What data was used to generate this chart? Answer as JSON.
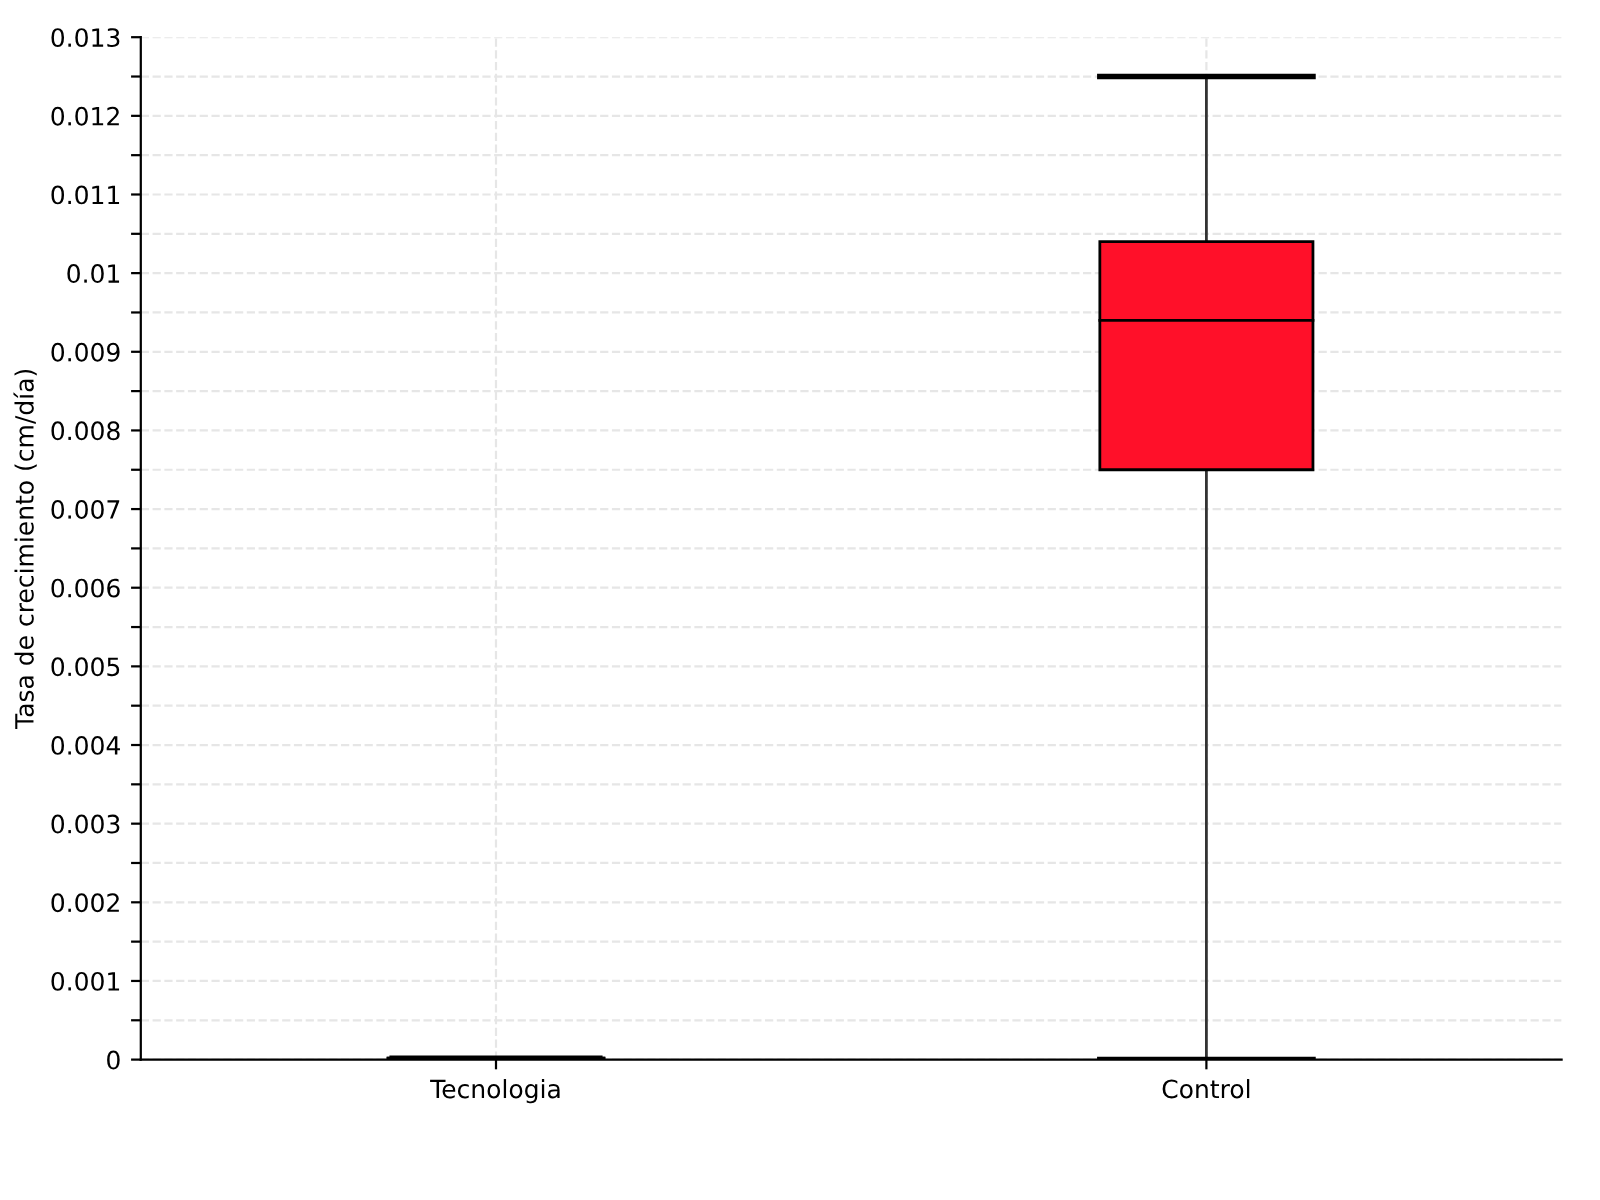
{
  "chart_data": {
    "type": "box",
    "ylabel": "Tasa de crecimiento (cm/día)",
    "categories": [
      "Tecnologia",
      "Control"
    ],
    "boxes": [
      {
        "low": 0,
        "q1": 0,
        "median": 0,
        "q3": 0,
        "high": 0
      },
      {
        "low": 0,
        "q1": 0.0075,
        "median": 0.0094,
        "q3": 0.0104,
        "high": 0.0125
      }
    ],
    "colors": [
      "#000000",
      "#ff1029"
    ],
    "ylim": [
      0,
      0.013
    ],
    "yticks": [
      0,
      {
        "value": 0.0005,
        "label": null
      },
      0.001,
      {
        "value": 0.0015,
        "label": null
      },
      0.002,
      {
        "value": 0.0025,
        "label": null
      },
      0.003,
      {
        "value": 0.0035,
        "label": null
      },
      0.004,
      {
        "value": 0.0045,
        "label": null
      },
      0.005,
      {
        "value": 0.0055,
        "label": null
      },
      0.006,
      {
        "value": 0.0065,
        "label": null
      },
      0.007,
      {
        "value": 0.0075,
        "label": null
      },
      0.008,
      {
        "value": 0.0085,
        "label": null
      },
      0.009,
      {
        "value": 0.0095,
        "label": null
      },
      0.01,
      {
        "value": 0.0105,
        "label": null
      },
      0.011,
      {
        "value": 0.0115,
        "label": null
      },
      0.012,
      {
        "value": 0.0125,
        "label": null
      },
      0.013
    ],
    "grid": true
  }
}
